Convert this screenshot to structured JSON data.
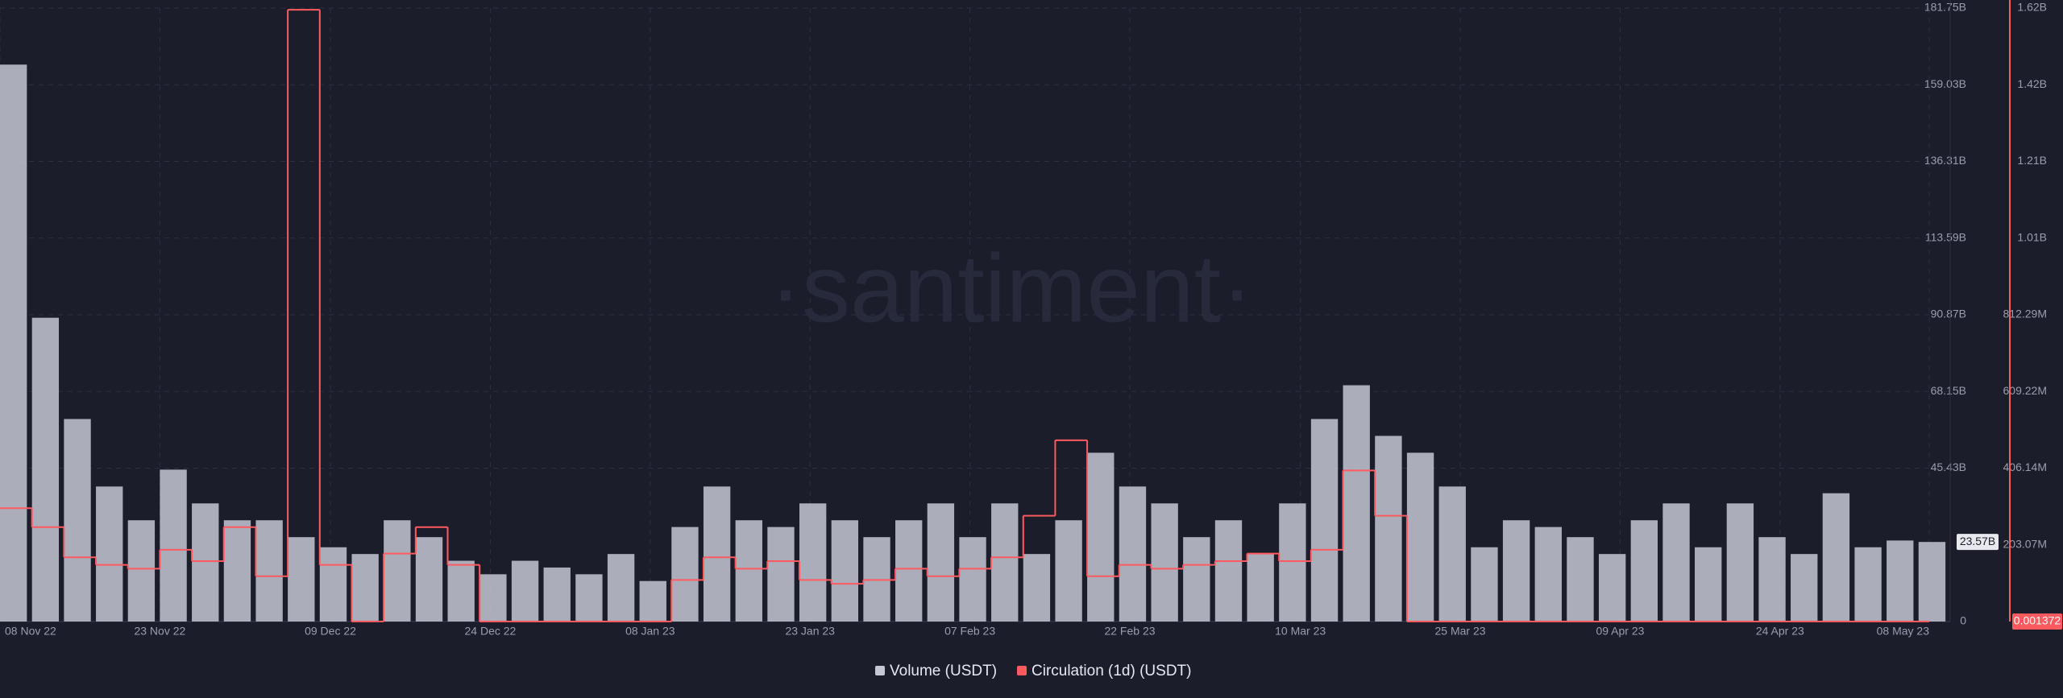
{
  "chart_data": {
    "type": "bar-line",
    "watermark": "·santiment·",
    "x": [
      "2022-11-08",
      "2022-11-11",
      "2022-11-14",
      "2022-11-17",
      "2022-11-20",
      "2022-11-23",
      "2022-11-26",
      "2022-11-29",
      "2022-12-02",
      "2022-12-05",
      "2022-12-08",
      "2022-12-11",
      "2022-12-14",
      "2022-12-17",
      "2022-12-20",
      "2022-12-23",
      "2022-12-26",
      "2022-12-29",
      "2023-01-01",
      "2023-01-04",
      "2023-01-07",
      "2023-01-10",
      "2023-01-13",
      "2023-01-16",
      "2023-01-19",
      "2023-01-22",
      "2023-01-25",
      "2023-01-28",
      "2023-01-31",
      "2023-02-03",
      "2023-02-06",
      "2023-02-09",
      "2023-02-12",
      "2023-02-15",
      "2023-02-18",
      "2023-02-21",
      "2023-02-24",
      "2023-02-27",
      "2023-03-02",
      "2023-03-05",
      "2023-03-08",
      "2023-03-11",
      "2023-03-14",
      "2023-03-17",
      "2023-03-20",
      "2023-03-23",
      "2023-03-26",
      "2023-03-29",
      "2023-04-01",
      "2023-04-04",
      "2023-04-07",
      "2023-04-10",
      "2023-04-13",
      "2023-04-16",
      "2023-04-19",
      "2023-04-22",
      "2023-04-25",
      "2023-04-28",
      "2023-05-01",
      "2023-05-04",
      "2023-05-07"
    ],
    "xlim": [
      "2022-11-08",
      "2023-05-08"
    ],
    "xticks": [
      {
        "value": "2022-11-08",
        "label": "08 Nov 22"
      },
      {
        "value": "2022-11-23",
        "label": "23 Nov 22"
      },
      {
        "value": "2022-12-09",
        "label": "09 Dec 22"
      },
      {
        "value": "2022-12-24",
        "label": "24 Dec 22"
      },
      {
        "value": "2023-01-08",
        "label": "08 Jan 23"
      },
      {
        "value": "2023-01-23",
        "label": "23 Jan 23"
      },
      {
        "value": "2023-02-07",
        "label": "07 Feb 23"
      },
      {
        "value": "2023-02-22",
        "label": "22 Feb 23"
      },
      {
        "value": "2023-03-10",
        "label": "10 Mar 23"
      },
      {
        "value": "2023-03-25",
        "label": "25 Mar 23"
      },
      {
        "value": "2023-04-09",
        "label": "09 Apr 23"
      },
      {
        "value": "2023-04-24",
        "label": "24 Apr 23"
      },
      {
        "value": "2023-05-08",
        "label": "08 May 23"
      }
    ],
    "ylim": [
      0,
      181750000000
    ],
    "yticks": [
      {
        "value": 0,
        "label": "0"
      },
      {
        "value": 45430000000,
        "label": "45.43B"
      },
      {
        "value": 68150000000,
        "label": "68.15B"
      },
      {
        "value": 90870000000,
        "label": "90.87B"
      },
      {
        "value": 113590000000,
        "label": "113.59B"
      },
      {
        "value": 136310000000,
        "label": "136.31B"
      },
      {
        "value": 159030000000,
        "label": "159.03B"
      },
      {
        "value": 181750000000,
        "label": "181.75B"
      }
    ],
    "y2lim": [
      0,
      1624560000
    ],
    "y2ticks": [
      {
        "value": 203070000,
        "label": "203.07M"
      },
      {
        "value": 406140000,
        "label": "406.14M"
      },
      {
        "value": 609220000,
        "label": "609.22M"
      },
      {
        "value": 812290000,
        "label": "812.29M"
      },
      {
        "value": 1015350000,
        "label": "1.01B"
      },
      {
        "value": 1218420000,
        "label": "1.21B"
      },
      {
        "value": 1421490000,
        "label": "1.42B"
      },
      {
        "value": 1624560000,
        "label": "1.62B"
      }
    ],
    "grid": true,
    "series": [
      {
        "name": "Volume (USDT)",
        "type": "bar",
        "color": "#c4c7d4",
        "values": [
          165000000000.0,
          90000000000.0,
          60000000000.0,
          40000000000.0,
          30000000000.0,
          45000000000.0,
          35000000000.0,
          30000000000.0,
          30000000000.0,
          25000000000.0,
          22000000000.0,
          20000000000.0,
          30000000000.0,
          25000000000.0,
          18000000000.0,
          14000000000.0,
          18000000000.0,
          16000000000.0,
          14000000000.0,
          20000000000.0,
          12000000000.0,
          28000000000.0,
          40000000000.0,
          30000000000.0,
          28000000000.0,
          35000000000.0,
          30000000000.0,
          25000000000.0,
          30000000000.0,
          35000000000.0,
          25000000000.0,
          35000000000.0,
          20000000000.0,
          30000000000.0,
          50000000000.0,
          40000000000.0,
          35000000000.0,
          25000000000.0,
          30000000000.0,
          20000000000.0,
          35000000000.0,
          60000000000.0,
          70000000000.0,
          55000000000.0,
          50000000000.0,
          40000000000.0,
          22000000000.0,
          30000000000.0,
          28000000000.0,
          25000000000.0,
          20000000000.0,
          30000000000.0,
          35000000000.0,
          22000000000.0,
          35000000000.0,
          25000000000.0,
          20000000000.0,
          38000000000.0,
          22000000000.0,
          24000000000.0,
          23570000000.0
        ],
        "last_label": "23.57B"
      },
      {
        "name": "Circulation (1d) (USDT)",
        "type": "step",
        "axis": "y2",
        "color": "#ff5a5f",
        "values": [
          300000000,
          250000000,
          170000000,
          150000000,
          140000000,
          190000000,
          160000000,
          250000000,
          120000000,
          1620000000,
          150000000,
          0,
          180000000,
          250000000,
          150000000,
          0,
          0,
          0,
          0,
          0,
          0,
          110000000,
          170000000,
          140000000,
          160000000,
          110000000,
          100000000,
          110000000,
          140000000,
          120000000,
          140000000,
          170000000,
          280000000,
          480000000,
          120000000,
          150000000,
          140000000,
          150000000,
          160000000,
          180000000,
          160000000,
          190000000,
          400000000,
          280000000,
          0,
          0,
          0,
          0,
          0,
          0,
          0,
          0,
          0,
          0,
          0,
          0,
          0,
          0,
          0,
          0,
          0.001372
        ],
        "last_label": "0.001372"
      }
    ]
  }
}
